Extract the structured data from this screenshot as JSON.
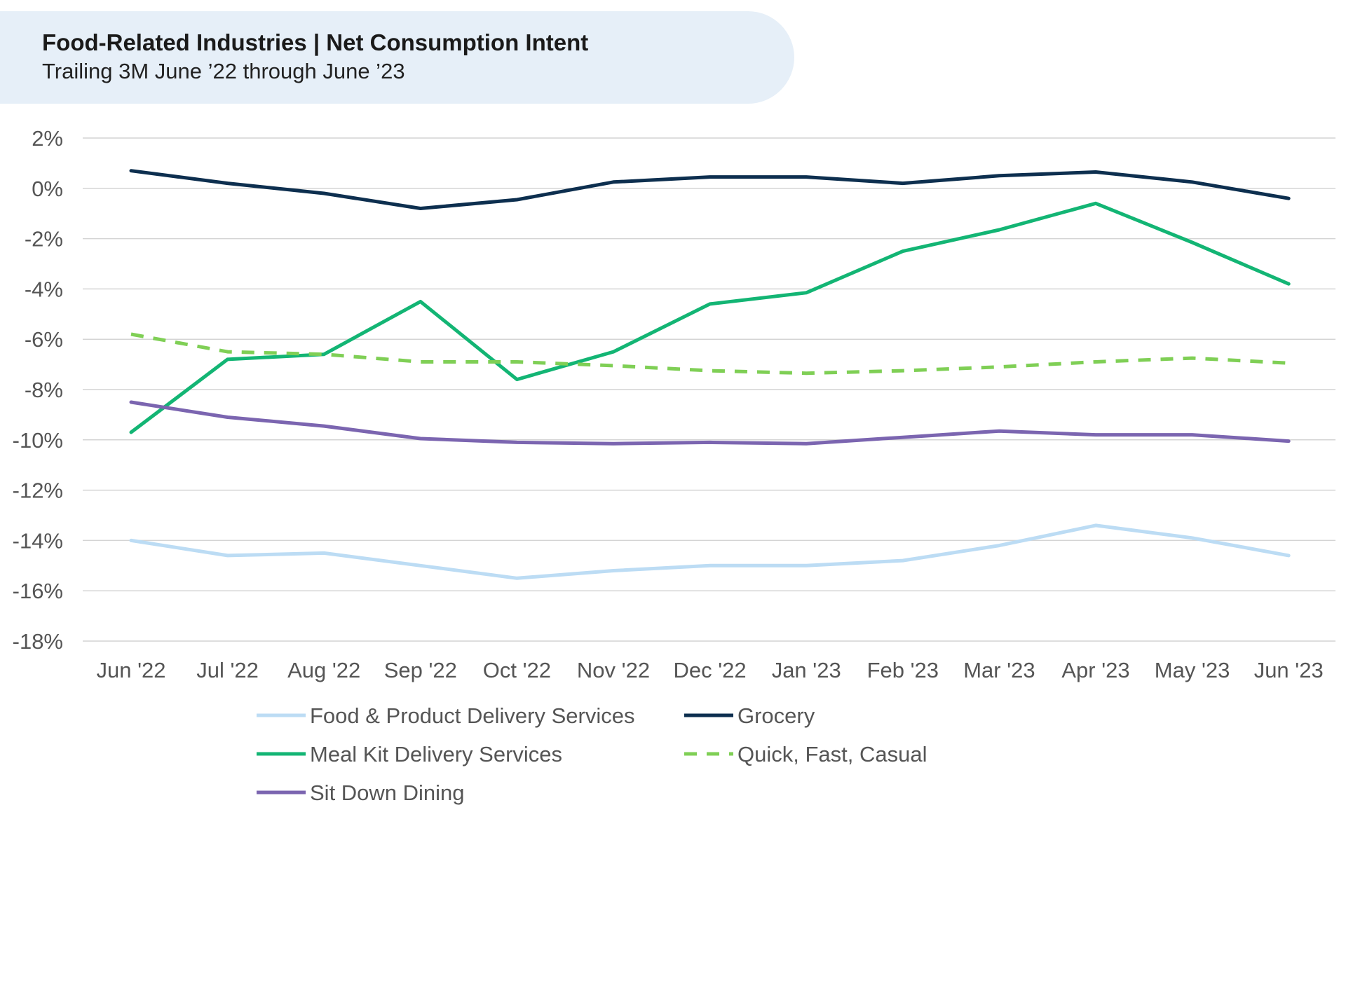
{
  "chart_data": {
    "type": "line",
    "title": "Food-Related Industries | Net Consumption Intent",
    "subtitle": "Trailing 3M June ’22 through June ’23",
    "xlabel": "",
    "ylabel": "",
    "ylim": [
      -18,
      2
    ],
    "yticks": [
      2,
      0,
      -2,
      -4,
      -6,
      -8,
      -10,
      -12,
      -14,
      -16,
      -18
    ],
    "ytick_labels": [
      "2%",
      "0%",
      "-2%",
      "-4%",
      "-6%",
      "-8%",
      "-10%",
      "-12%",
      "-14%",
      "-16%",
      "-18%"
    ],
    "categories": [
      "Jun '22",
      "Jul '22",
      "Aug '22",
      "Sep '22",
      "Oct '22",
      "Nov '22",
      "Dec '22",
      "Jan '23",
      "Feb '23",
      "Mar '23",
      "Apr '23",
      "May '23",
      "Jun '23"
    ],
    "legend_position": "bottom",
    "series": [
      {
        "name": "Food & Product Delivery Services",
        "color": "#bcdcf4",
        "dashed": false,
        "values": [
          -14.0,
          -14.6,
          -14.5,
          -15.0,
          -15.5,
          -15.2,
          -15.0,
          -15.0,
          -14.8,
          -14.2,
          -13.4,
          -13.9,
          -14.6
        ]
      },
      {
        "name": "Grocery",
        "color": "#0d2f4f",
        "dashed": false,
        "values": [
          0.7,
          0.2,
          -0.2,
          -0.8,
          -0.45,
          0.25,
          0.45,
          0.45,
          0.2,
          0.5,
          0.65,
          0.25,
          -0.4
        ]
      },
      {
        "name": "Meal Kit Delivery Services",
        "color": "#13b574",
        "dashed": false,
        "values": [
          -9.7,
          -6.8,
          -6.6,
          -4.5,
          -7.6,
          -6.5,
          -4.6,
          -4.15,
          -2.5,
          -1.65,
          -0.6,
          -2.15,
          -3.8
        ]
      },
      {
        "name": "Quick, Fast, Casual",
        "color": "#7fcf55",
        "dashed": true,
        "values": [
          -5.8,
          -6.5,
          -6.6,
          -6.9,
          -6.9,
          -7.05,
          -7.25,
          -7.35,
          -7.25,
          -7.1,
          -6.9,
          -6.75,
          -6.95
        ]
      },
      {
        "name": "Sit Down Dining",
        "color": "#7b65b0",
        "dashed": false,
        "values": [
          -8.5,
          -9.1,
          -9.45,
          -9.95,
          -10.1,
          -10.15,
          -10.1,
          -10.15,
          -9.9,
          -9.65,
          -9.8,
          -9.8,
          -10.05
        ]
      }
    ]
  }
}
